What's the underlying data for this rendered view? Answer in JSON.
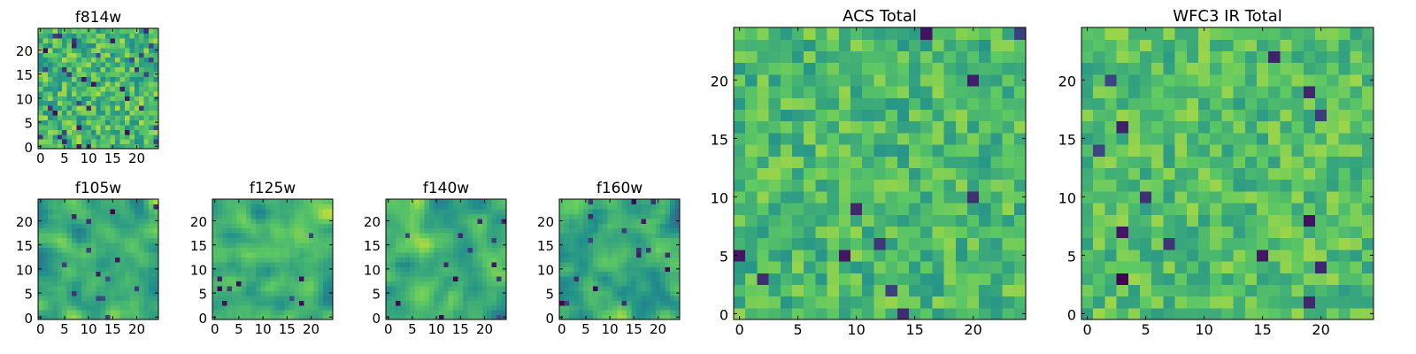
{
  "figure": {
    "colormap": "viridis",
    "colormap_stops": [
      "#440154",
      "#3b528b",
      "#21918c",
      "#5ec962",
      "#fde725"
    ],
    "background": "#ffffff",
    "axis_color": "#000000"
  },
  "chart_data": [
    {
      "id": "f814w",
      "type": "heatmap",
      "title": "f814w",
      "grid": [
        25,
        25
      ],
      "seed": 11,
      "smooth": 0,
      "mean": 0.68,
      "spread": 0.2,
      "dark_fraction": 0.05,
      "xlim": [
        0,
        24
      ],
      "ylim": [
        0,
        24
      ],
      "xticks": [
        0,
        5,
        10,
        15,
        20
      ],
      "yticks": [
        0,
        5,
        10,
        15,
        20
      ]
    },
    {
      "id": "f105w",
      "type": "heatmap",
      "title": "f105w",
      "grid": [
        25,
        25
      ],
      "seed": 23,
      "smooth": 2,
      "mean": 0.64,
      "spread": 0.24,
      "dark_fraction": 0.02,
      "xlim": [
        0,
        24
      ],
      "ylim": [
        0,
        24
      ],
      "xticks": [
        0,
        5,
        10,
        15,
        20
      ],
      "yticks": [
        0,
        5,
        10,
        15,
        20
      ]
    },
    {
      "id": "f125w",
      "type": "heatmap",
      "title": "f125w",
      "grid": [
        25,
        25
      ],
      "seed": 37,
      "smooth": 2,
      "mean": 0.66,
      "spread": 0.24,
      "dark_fraction": 0.02,
      "xlim": [
        0,
        24
      ],
      "ylim": [
        0,
        24
      ],
      "xticks": [
        0,
        5,
        10,
        15,
        20
      ],
      "yticks": [
        0,
        5,
        10,
        15,
        20
      ]
    },
    {
      "id": "f140w",
      "type": "heatmap",
      "title": "f140w",
      "grid": [
        25,
        25
      ],
      "seed": 41,
      "smooth": 2,
      "mean": 0.62,
      "spread": 0.25,
      "dark_fraction": 0.03,
      "xlim": [
        0,
        24
      ],
      "ylim": [
        0,
        24
      ],
      "xticks": [
        0,
        5,
        10,
        15,
        20
      ],
      "yticks": [
        0,
        5,
        10,
        15,
        20
      ]
    },
    {
      "id": "f160w",
      "type": "heatmap",
      "title": "f160w",
      "grid": [
        25,
        25
      ],
      "seed": 53,
      "smooth": 2,
      "mean": 0.6,
      "spread": 0.26,
      "dark_fraction": 0.03,
      "xlim": [
        0,
        24
      ],
      "ylim": [
        0,
        24
      ],
      "xticks": [
        0,
        5,
        10,
        15,
        20
      ],
      "yticks": [
        0,
        5,
        10,
        15,
        20
      ]
    },
    {
      "id": "acs-total",
      "type": "heatmap",
      "title": "ACS Total",
      "grid": [
        25,
        25
      ],
      "seed": 67,
      "smooth": 0,
      "mean": 0.68,
      "spread": 0.16,
      "dark_fraction": 0.03,
      "xlim": [
        0,
        24
      ],
      "ylim": [
        0,
        24
      ],
      "xticks": [
        0,
        5,
        10,
        15,
        20
      ],
      "yticks": [
        0,
        5,
        10,
        15,
        20
      ]
    },
    {
      "id": "wfc3-ir-total",
      "type": "heatmap",
      "title": "WFC3 IR Total",
      "grid": [
        25,
        25
      ],
      "seed": 79,
      "smooth": 0,
      "mean": 0.7,
      "spread": 0.15,
      "dark_fraction": 0.025,
      "xlim": [
        0,
        24
      ],
      "ylim": [
        0,
        24
      ],
      "xticks": [
        0,
        5,
        10,
        15,
        20
      ],
      "yticks": [
        0,
        5,
        10,
        15,
        20
      ]
    }
  ]
}
